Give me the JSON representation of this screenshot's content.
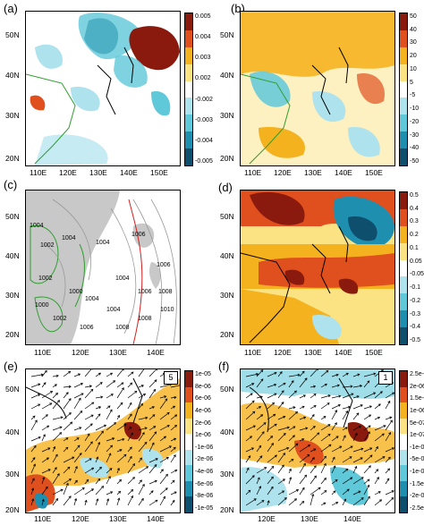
{
  "panels": {
    "a": {
      "label": "(a)",
      "lat_ticks": [
        "50N",
        "40N",
        "30N",
        "20N"
      ],
      "lon_ticks": [
        "110E",
        "120E",
        "130E",
        "140E",
        "150E"
      ],
      "colorbar": [
        "0.005",
        "0.004",
        "0.003",
        "0.002",
        "-0.002",
        "-0.003",
        "-0.004",
        "-0.005"
      ]
    },
    "b": {
      "label": "(b)",
      "lat_ticks": [
        "50N",
        "40N",
        "30N",
        "20N"
      ],
      "lon_ticks": [
        "110E",
        "120E",
        "130E",
        "140E",
        "150E"
      ],
      "colorbar": [
        "50",
        "40",
        "30",
        "20",
        "10",
        "5",
        "-5",
        "-10",
        "-20",
        "-30",
        "-40",
        "-50"
      ]
    },
    "c": {
      "label": "(c)",
      "lat_ticks": [
        "50N",
        "40N",
        "30N",
        "20N"
      ],
      "lon_ticks": [
        "110E",
        "120E",
        "130E",
        "140E"
      ],
      "contours": [
        "1004",
        "1006",
        "1002",
        "1004",
        "1004",
        "1006",
        "1004",
        "1002",
        "1000",
        "1004",
        "1006",
        "1008",
        "1010",
        "1008",
        "1008",
        "1004",
        "1002",
        "1000",
        "1006"
      ]
    },
    "d": {
      "label": "(d)",
      "lat_ticks": [
        "50N",
        "40N",
        "30N",
        "20N"
      ],
      "lon_ticks": [
        "110E",
        "120E",
        "130E",
        "140E",
        "150E"
      ],
      "colorbar": [
        "0.5",
        "0.4",
        "0.3",
        "0.2",
        "0.1",
        "0.05",
        "-0.05",
        "-0.1",
        "-0.2",
        "-0.3",
        "-0.4",
        "-0.5"
      ]
    },
    "e": {
      "label": "(e)",
      "lat_ticks": [
        "50N",
        "40N",
        "30N",
        "20N"
      ],
      "lon_ticks": [
        "110E",
        "120E",
        "130E",
        "140E"
      ],
      "ref_vector": "5",
      "colorbar": [
        "1e-05",
        "8e-06",
        "6e-06",
        "4e-06",
        "2e-06",
        "1e-06",
        "-1e-06",
        "-2e-06",
        "-4e-06",
        "-6e-06",
        "-8e-06",
        "-1e-05"
      ]
    },
    "f": {
      "label": "(f)",
      "lat_ticks": [
        "50N",
        "40N",
        "30N",
        "20N"
      ],
      "lon_ticks": [
        "120E",
        "130E",
        "140E"
      ],
      "ref_vector": "1",
      "colorbar": [
        "2.5e-06",
        "2e-06",
        "1.5e-06",
        "1e-06",
        "5e-07",
        "1e-07",
        "-1e-07",
        "-5e-07",
        "-1e-06",
        "-1.5e-06",
        "-2e-06",
        "-2.5e-06"
      ]
    }
  },
  "colors": {
    "pos_dark": "#8b1a0e",
    "pos_mid": "#e0501e",
    "pos_light": "#f5b21f",
    "pos_pale": "#fbe283",
    "neg_pale": "#aee3ee",
    "neg_light": "#5fc8d9",
    "neg_mid": "#1f8fb0",
    "neg_dark": "#0e4f6e",
    "land_gray": "#c8c8c8",
    "coast": "#2f9e2f",
    "contour_red": "#d02020"
  }
}
